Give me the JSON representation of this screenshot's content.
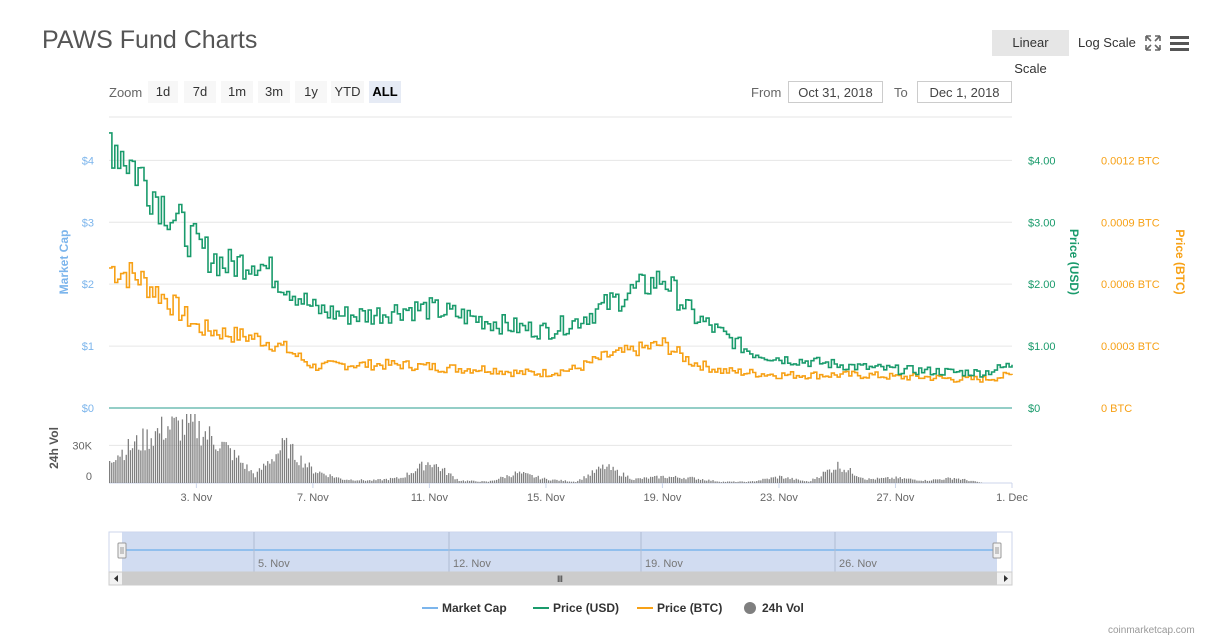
{
  "header": {
    "title": "PAWS Fund Charts"
  },
  "toolbar": {
    "linear_label": "Linear Scale",
    "log_label": "Log Scale",
    "fullscreen_icon": "fullscreen-icon",
    "menu_icon": "hamburger-menu-icon"
  },
  "zoom": {
    "label": "Zoom",
    "buttons": [
      "1d",
      "7d",
      "1m",
      "3m",
      "1y",
      "YTD",
      "ALL"
    ],
    "active": "ALL"
  },
  "range": {
    "from_label": "From",
    "from_value": "Oct 31, 2018",
    "to_label": "To",
    "to_value": "Dec 1, 2018"
  },
  "credit": "coinmarketcap.com",
  "colors": {
    "market_cap": "#7cb5ec",
    "price_usd": "#1a9b6c",
    "price_btc": "#f7a116",
    "volume": "#7f7f7f",
    "navigator_fill": "#c9d6ef"
  },
  "chart_data": [
    {
      "type": "line",
      "series": [
        {
          "name": "Market Cap",
          "x": [],
          "y": []
        },
        {
          "name": "Price (USD)",
          "x": [
            "Oct 31",
            "Nov 1",
            "Nov 2",
            "Nov 3",
            "Nov 4",
            "Nov 5",
            "Nov 6",
            "Nov 7",
            "Nov 8",
            "Nov 9",
            "Nov 10",
            "Nov 11",
            "Nov 12",
            "Nov 13",
            "Nov 14",
            "Nov 15",
            "Nov 16",
            "Nov 17",
            "Nov 18",
            "Nov 19",
            "Nov 20",
            "Nov 21",
            "Nov 22",
            "Nov 23",
            "Nov 24",
            "Nov 25",
            "Nov 26",
            "Nov 27",
            "Nov 28",
            "Nov 29",
            "Nov 30",
            "Dec 1"
          ],
          "y": [
            4.4,
            3.8,
            3.2,
            2.6,
            2.3,
            2.4,
            2.0,
            1.6,
            1.5,
            1.5,
            1.6,
            1.6,
            1.5,
            1.4,
            1.3,
            1.25,
            1.4,
            1.65,
            1.9,
            2.1,
            1.5,
            1.2,
            0.9,
            0.8,
            0.75,
            0.7,
            0.65,
            0.62,
            0.6,
            0.58,
            0.57,
            0.7
          ]
        },
        {
          "name": "Price (BTC)",
          "x": [
            "Oct 31",
            "Nov 1",
            "Nov 2",
            "Nov 3",
            "Nov 4",
            "Nov 5",
            "Nov 6",
            "Nov 7",
            "Nov 8",
            "Nov 9",
            "Nov 10",
            "Nov 11",
            "Nov 12",
            "Nov 13",
            "Nov 14",
            "Nov 15",
            "Nov 16",
            "Nov 17",
            "Nov 18",
            "Nov 19",
            "Nov 20",
            "Nov 21",
            "Nov 22",
            "Nov 23",
            "Nov 24",
            "Nov 25",
            "Nov 26",
            "Nov 27",
            "Nov 28",
            "Nov 29",
            "Nov 30",
            "Dec 1"
          ],
          "y": [
            0.00068,
            0.00063,
            0.00052,
            0.00039,
            0.00036,
            0.00034,
            0.00029,
            0.0002,
            0.00021,
            0.00021,
            0.00021,
            0.0002,
            0.00019,
            0.00019,
            0.00017,
            0.00017,
            0.00019,
            0.00025,
            0.00028,
            0.00031,
            0.00022,
            0.00018,
            0.00017,
            0.00016,
            0.00016,
            0.00016,
            0.00016,
            0.00015,
            0.00015,
            0.00014,
            0.00014,
            0.00016
          ]
        }
      ],
      "y_axes": [
        {
          "title": "Market Cap",
          "ticks": [
            "$0",
            "$1",
            "$2",
            "$3",
            "$4"
          ],
          "range": [
            0,
            4.7
          ]
        },
        {
          "title": "Price (USD)",
          "ticks": [
            "$0",
            "$1.00",
            "$2.00",
            "$3.00",
            "$4.00"
          ],
          "range": [
            0,
            4.7
          ]
        },
        {
          "title": "Price (BTC)",
          "ticks": [
            "0 BTC",
            "0.0003 BTC",
            "0.0006 BTC",
            "0.0009 BTC",
            "0.0012 BTC"
          ],
          "range": [
            0,
            0.00141
          ]
        }
      ],
      "grid": true
    },
    {
      "type": "bar",
      "series": [
        {
          "name": "24h Vol",
          "x": [
            "Oct 31",
            "Nov 1",
            "Nov 2",
            "Nov 3",
            "Nov 4",
            "Nov 5",
            "Nov 6",
            "Nov 7",
            "Nov 8",
            "Nov 9",
            "Nov 10",
            "Nov 11",
            "Nov 12",
            "Nov 13",
            "Nov 14",
            "Nov 15",
            "Nov 16",
            "Nov 17",
            "Nov 18",
            "Nov 19",
            "Nov 20",
            "Nov 21",
            "Nov 22",
            "Nov 23",
            "Nov 24",
            "Nov 25",
            "Nov 26",
            "Nov 27",
            "Nov 28",
            "Nov 29",
            "Nov 30",
            "Dec 1"
          ],
          "y": [
            20000,
            32000,
            45000,
            44000,
            28000,
            6000,
            30000,
            10000,
            3000,
            2000,
            4000,
            17000,
            2000,
            1000,
            8000,
            3000,
            1000,
            13000,
            3000,
            5000,
            4000,
            1000,
            1000,
            5000,
            1000,
            14000,
            3000,
            4000,
            2000,
            4000,
            0,
            0
          ]
        }
      ],
      "y_axis": {
        "title": "24h Vol",
        "ticks": [
          "0",
          "30K"
        ],
        "range": [
          0,
          55000
        ]
      },
      "x_ticks": [
        "3. Nov",
        "7. Nov",
        "11. Nov",
        "15. Nov",
        "19. Nov",
        "23. Nov",
        "27. Nov",
        "1. Dec"
      ]
    }
  ],
  "navigator": {
    "x_ticks": [
      "5. Nov",
      "12. Nov",
      "19. Nov",
      "26. Nov"
    ],
    "scroll_grip": "Ⅲ"
  },
  "legend": [
    {
      "name": "Market Cap",
      "color": "#7cb5ec",
      "symbol": "line"
    },
    {
      "name": "Price (USD)",
      "color": "#1a9b6c",
      "symbol": "line"
    },
    {
      "name": "Price (BTC)",
      "color": "#f7a116",
      "symbol": "line"
    },
    {
      "name": "24h Vol",
      "color": "#7f7f7f",
      "symbol": "circle"
    }
  ]
}
